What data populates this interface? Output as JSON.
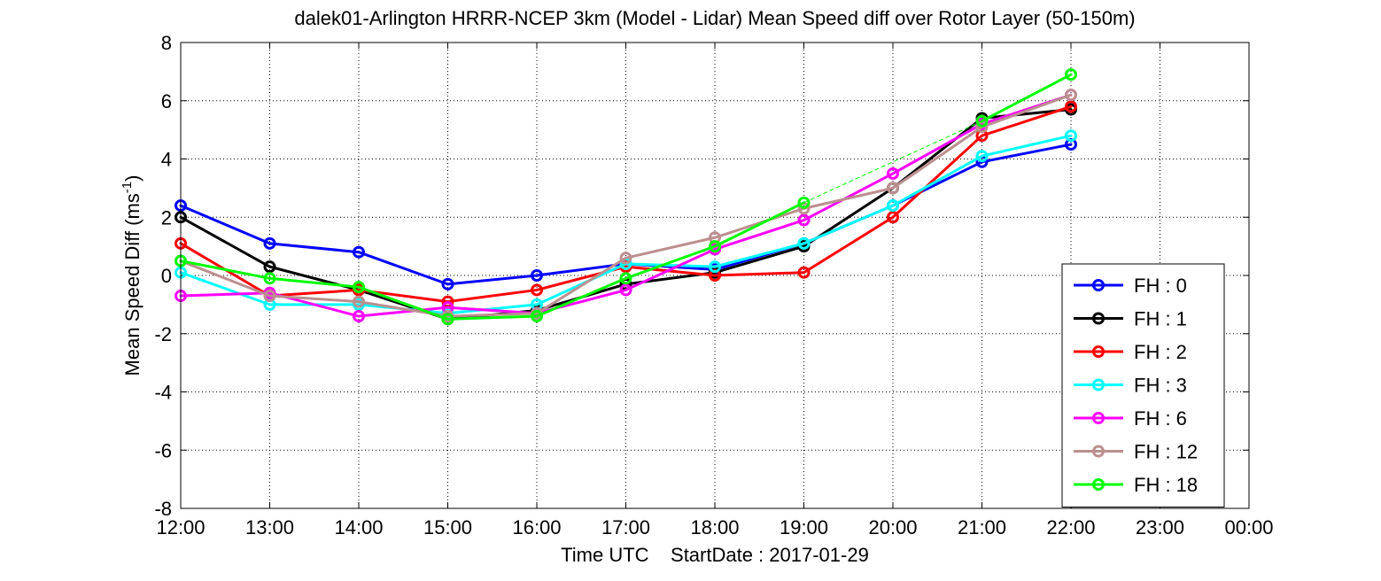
{
  "chart_data": {
    "type": "line",
    "title": "dalek01-Arlington HRRR-NCEP 3km (Model - Lidar) Mean Speed diff over Rotor Layer (50-150m)",
    "xlabel": "Time UTC    StartDate : 2017-01-29",
    "ylabel": "Mean Speed Diff (ms",
    "ylabel_sup": "-1",
    "ylabel_end": ")",
    "x_ticks": [
      "12:00",
      "13:00",
      "14:00",
      "15:00",
      "16:00",
      "17:00",
      "18:00",
      "19:00",
      "20:00",
      "21:00",
      "22:00",
      "23:00",
      "00:00"
    ],
    "y_ticks": [
      "8",
      "6",
      "4",
      "2",
      "0",
      "-2",
      "-4",
      "-6",
      "-8"
    ],
    "ylim": [
      -8,
      8
    ],
    "xlim": [
      "12:00",
      "00:00"
    ],
    "grid": true,
    "legend_position": "bottom-right",
    "x": [
      "12:00",
      "13:00",
      "14:00",
      "15:00",
      "16:00",
      "17:00",
      "18:00",
      "19:00",
      "20:00",
      "21:00",
      "22:00"
    ],
    "series": [
      {
        "name": "FH : 0",
        "color": "#0000ff",
        "values": [
          2.4,
          1.1,
          0.8,
          -0.3,
          0.0,
          0.4,
          0.2,
          1.1,
          2.4,
          3.9,
          4.5
        ]
      },
      {
        "name": "FH : 1",
        "color": "#000000",
        "values": [
          2.0,
          0.3,
          -0.5,
          -1.5,
          -1.2,
          -0.3,
          0.1,
          1.0,
          3.0,
          5.4,
          5.7
        ]
      },
      {
        "name": "FH : 2",
        "color": "#ff0000",
        "values": [
          1.1,
          -0.7,
          -0.5,
          -0.9,
          -0.5,
          0.3,
          0.0,
          0.1,
          2.0,
          4.8,
          5.8
        ]
      },
      {
        "name": "FH : 3",
        "color": "#00ffff",
        "values": [
          0.1,
          -1.0,
          -1.0,
          -1.3,
          -1.0,
          0.4,
          0.3,
          1.1,
          2.4,
          4.1,
          4.8
        ]
      },
      {
        "name": "FH : 6",
        "color": "#ff00ff",
        "values": [
          -0.7,
          -0.6,
          -1.4,
          -1.1,
          -1.3,
          -0.5,
          0.9,
          1.9,
          3.5,
          5.2,
          6.2
        ]
      },
      {
        "name": "FH : 12",
        "color": "#bc8f8f",
        "values": [
          0.5,
          -0.7,
          -0.9,
          -1.4,
          -1.3,
          0.6,
          1.3,
          2.3,
          3.0,
          5.1,
          6.2
        ]
      },
      {
        "name": "FH : 18",
        "color": "#00ff00",
        "values": [
          0.5,
          -0.1,
          -0.4,
          -1.5,
          -1.4,
          -0.1,
          1.0,
          2.5,
          null,
          5.3,
          6.9
        ]
      }
    ]
  }
}
